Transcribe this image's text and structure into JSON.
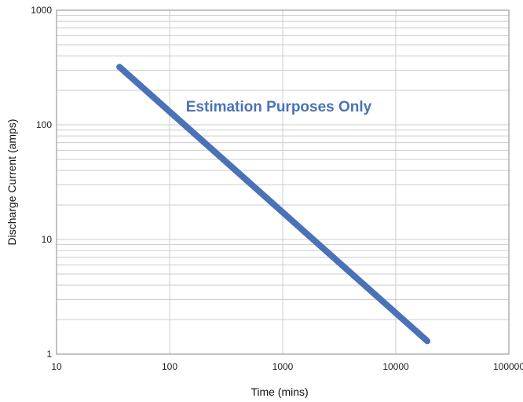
{
  "chart_data": {
    "type": "line",
    "xlabel": "Time (mins)",
    "ylabel": "Discharge Current (amps)",
    "x_scale": "log",
    "y_scale": "log",
    "xlim": [
      10,
      100000
    ],
    "ylim": [
      1,
      1000
    ],
    "x_ticks": [
      "10",
      "100",
      "1000",
      "10000",
      "100000"
    ],
    "y_ticks": [
      "1",
      "10",
      "100",
      "1000"
    ],
    "grid": true,
    "annotation": "Estimation Purposes Only",
    "series": [
      {
        "x": [
          36,
          19000
        ],
        "y": [
          320,
          1.3
        ],
        "color": "#4a72b8"
      }
    ]
  },
  "colors": {
    "series": "#4a72b8",
    "annotation": "#4a72b8",
    "grid": "#cccccc",
    "frame": "#888888"
  }
}
